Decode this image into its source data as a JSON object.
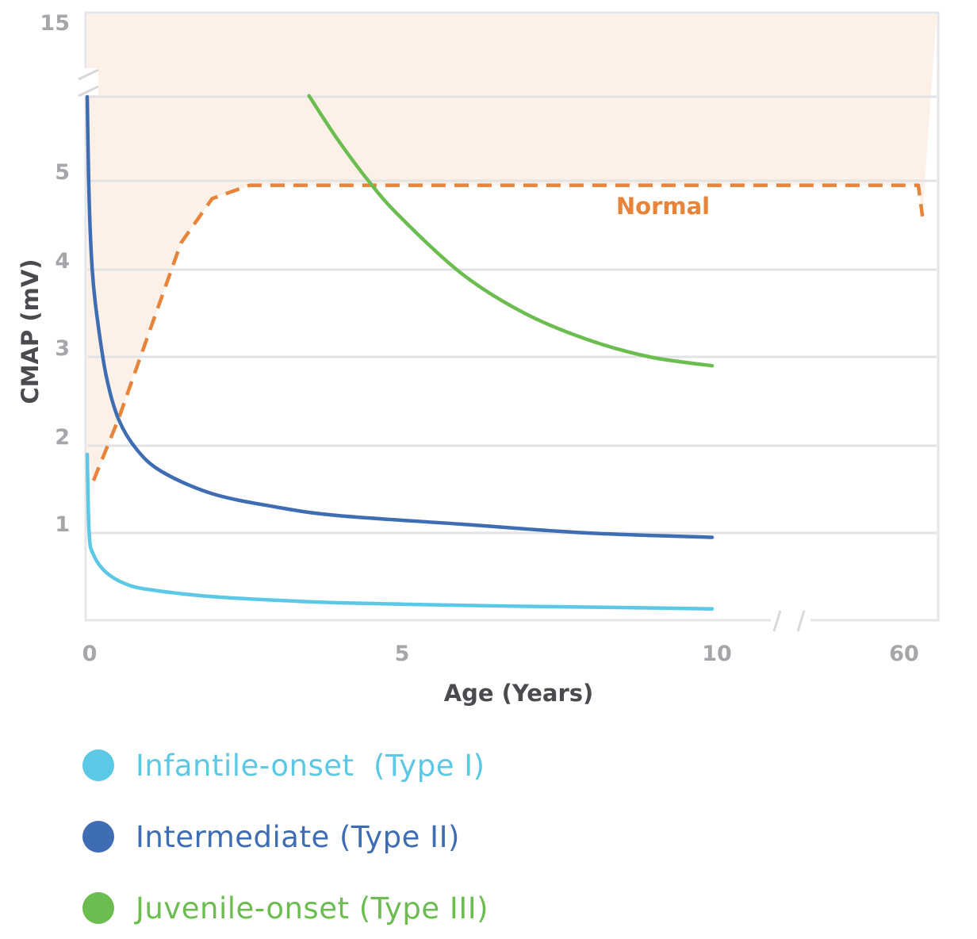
{
  "chart_data": {
    "type": "line",
    "title": "",
    "xlabel": "Age (Years)",
    "ylabel": "CMAP (mV)",
    "x_ticks": [
      "0",
      "5",
      "10",
      "60"
    ],
    "y_ticks": [
      "1",
      "2",
      "3",
      "4",
      "5",
      "15"
    ],
    "x_axis_break": "between 10 and 60",
    "y_axis_break": "between 5 and 15",
    "normal_label": "Normal",
    "grid": true,
    "legend_position": "bottom-left",
    "series": [
      {
        "name": "Normal",
        "style": "dashed",
        "color": "#e8843a",
        "points": [
          [
            0.1,
            1.6
          ],
          [
            0.5,
            2.3
          ],
          [
            1.0,
            3.3
          ],
          [
            1.5,
            4.3
          ],
          [
            2.0,
            4.8
          ],
          [
            2.6,
            4.95
          ],
          [
            10,
            4.95
          ],
          [
            60,
            4.95
          ],
          [
            61,
            4.6
          ]
        ]
      },
      {
        "name": "Infantile-onset  (Type I)",
        "color": "#5bc8e6",
        "points": [
          [
            0,
            1.9
          ],
          [
            0.03,
            1.0
          ],
          [
            0.1,
            0.75
          ],
          [
            0.3,
            0.55
          ],
          [
            0.6,
            0.42
          ],
          [
            1,
            0.35
          ],
          [
            2,
            0.27
          ],
          [
            3,
            0.23
          ],
          [
            4,
            0.2
          ],
          [
            6,
            0.17
          ],
          [
            8,
            0.15
          ],
          [
            10,
            0.13
          ]
        ]
      },
      {
        "name": "Intermediate (Type II)",
        "color": "#3f6db3",
        "points": [
          [
            0,
            6.0
          ],
          [
            0.03,
            4.8
          ],
          [
            0.08,
            4.0
          ],
          [
            0.15,
            3.5
          ],
          [
            0.3,
            2.8
          ],
          [
            0.5,
            2.3
          ],
          [
            0.8,
            1.95
          ],
          [
            1.2,
            1.7
          ],
          [
            2,
            1.45
          ],
          [
            3,
            1.3
          ],
          [
            4,
            1.2
          ],
          [
            6,
            1.1
          ],
          [
            8,
            1.0
          ],
          [
            10,
            0.95
          ]
        ]
      },
      {
        "name": "Juvenile-onset (Type III)",
        "color": "#6bbd50",
        "points": [
          [
            3.55,
            6.1
          ],
          [
            4,
            5.5
          ],
          [
            4.5,
            5.0
          ],
          [
            5,
            4.6
          ],
          [
            6,
            3.95
          ],
          [
            7,
            3.5
          ],
          [
            8,
            3.2
          ],
          [
            9,
            3.0
          ],
          [
            10,
            2.9
          ]
        ]
      }
    ],
    "ylim": [
      0,
      15
    ],
    "xlim": [
      0,
      60
    ]
  }
}
